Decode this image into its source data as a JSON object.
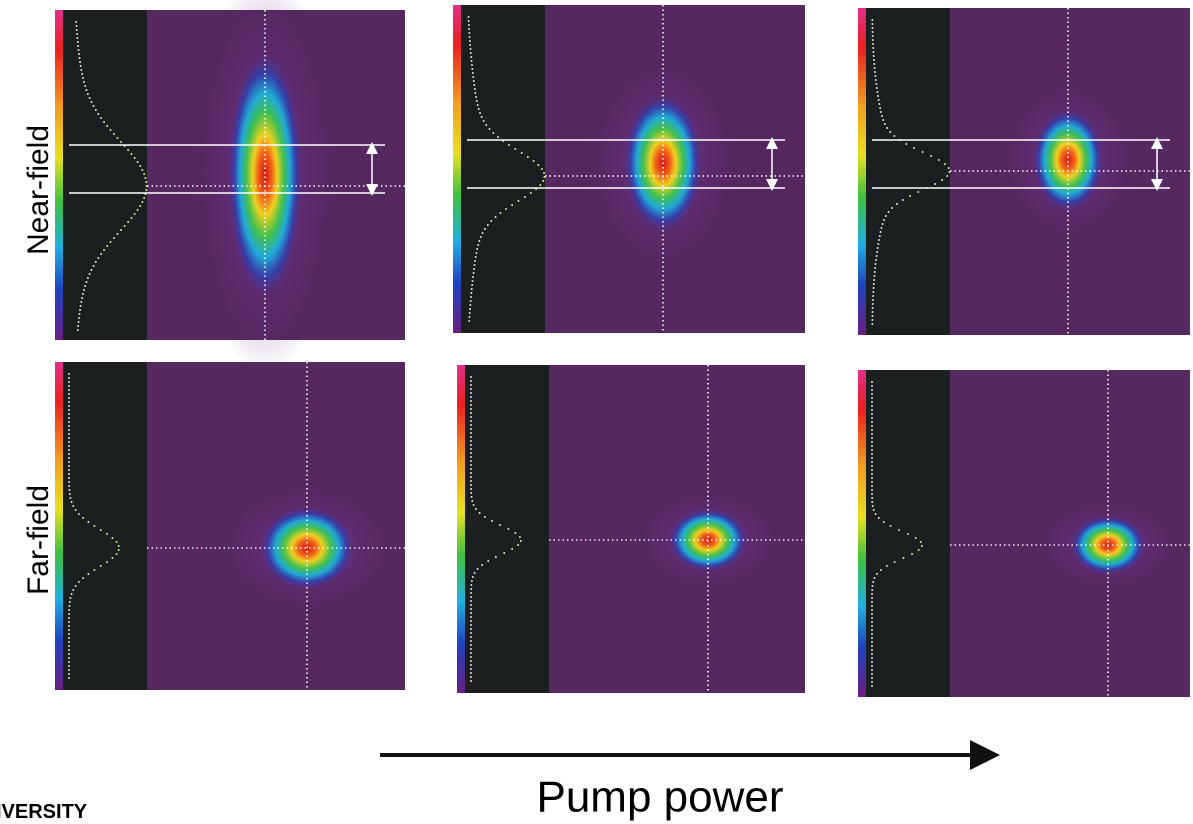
{
  "row_labels": {
    "near_field": "Near-field",
    "far_field": "Far-field"
  },
  "axis_label": "Pump power",
  "logo": "IVERSITY"
}
